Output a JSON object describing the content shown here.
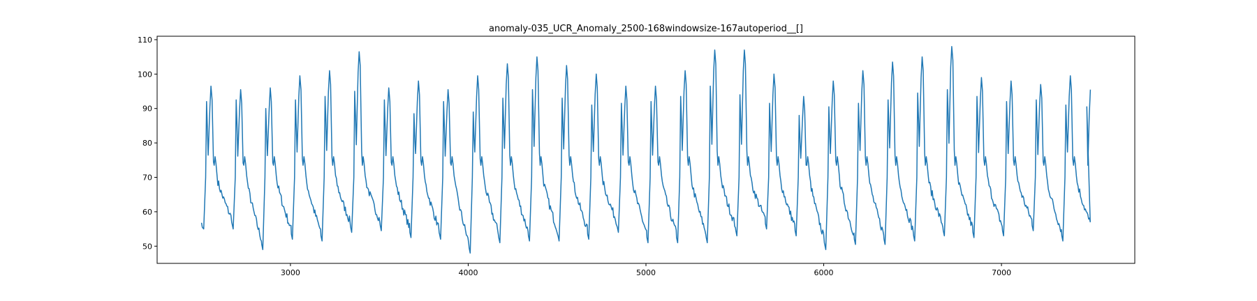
{
  "chart_data": {
    "type": "line",
    "title": "anomaly-035_UCR_Anomaly_2500-168windowsize-167autoperiod__[]",
    "xlabel": "",
    "ylabel": "",
    "xlim": [
      2250,
      7750
    ],
    "ylim": [
      45,
      111
    ],
    "xticks": [
      3000,
      4000,
      5000,
      6000,
      7000
    ],
    "yticks": [
      50,
      60,
      70,
      80,
      90,
      100,
      110
    ],
    "grid": false,
    "legend": "none",
    "series": [
      {
        "color": "#1f77b4",
        "x_start": 2500,
        "x_end": 7500,
        "period": 166.7,
        "peaks": [
          96.5,
          95.5,
          96,
          99.5,
          101,
          106.5,
          96,
          98,
          95.5,
          99.5,
          103,
          105,
          102.5,
          100,
          96.5,
          96.5,
          101,
          107,
          107,
          100,
          93.5,
          98,
          101,
          103.5,
          105,
          108,
          99,
          98,
          97,
          99.5
        ],
        "pre_peaks": [
          92,
          92.5,
          90,
          92.5,
          93.5,
          95,
          92.5,
          88.5,
          92,
          89,
          93,
          95.5,
          93,
          91,
          91.5,
          92,
          93.5,
          96.5,
          94,
          91.5,
          88,
          90.5,
          91.5,
          92.5,
          94.5,
          95.5,
          93.5,
          92,
          92.5,
          91,
          90.5
        ],
        "troughs": [
          55,
          49,
          52,
          51.5,
          54,
          54.5,
          52.5,
          52,
          48,
          51,
          51.5,
          51.5,
          52,
          54,
          51,
          51,
          51,
          53,
          55,
          53,
          49,
          50.5,
          50.5,
          51.5,
          53,
          52.5,
          53,
          54.5,
          51.5,
          53
        ]
      }
    ]
  }
}
